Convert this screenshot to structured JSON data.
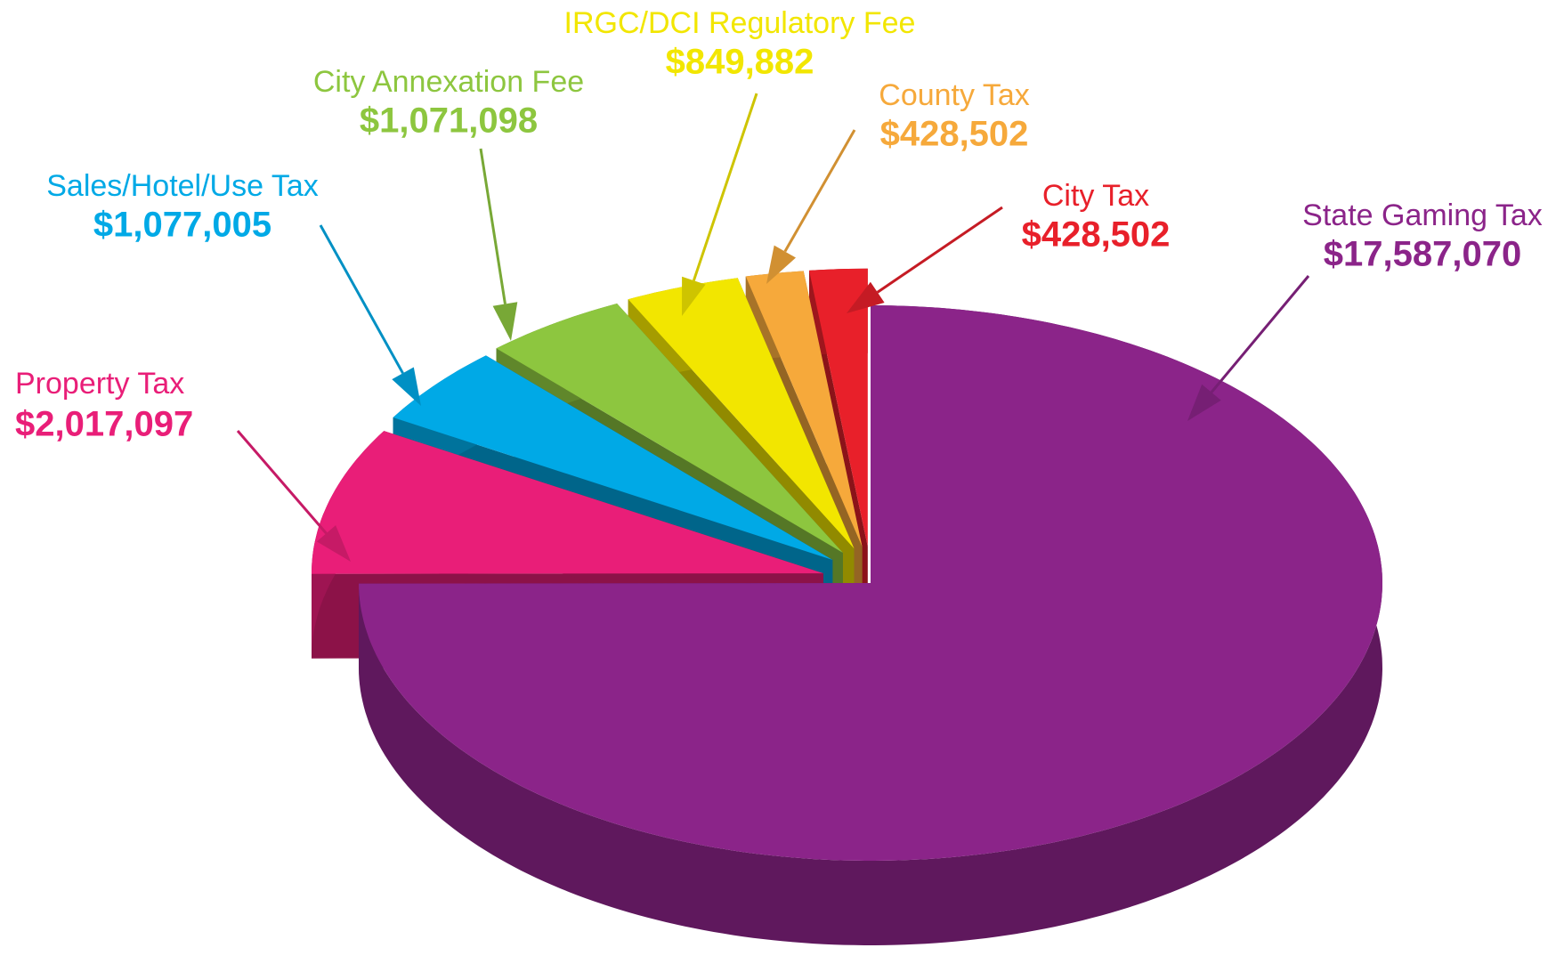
{
  "chart_data": {
    "type": "pie",
    "categories": [
      "State Gaming Tax",
      "Property Tax",
      "Sales/Hotel/Use Tax",
      "City Annexation Fee",
      "IRGC/DCI Regulatory Fee",
      "County Tax",
      "City Tax"
    ],
    "values": [
      17587070,
      2017097,
      1077005,
      1071098,
      849882,
      428502,
      428502
    ],
    "value_labels": [
      "$17,587,070",
      "$2,017,097",
      "$1,077,005",
      "$1,071,098",
      "$849,882",
      "$428,502",
      "$428,502"
    ],
    "colors": [
      "#8b2489",
      "#e91e78",
      "#00a9e6",
      "#8dc63f",
      "#f2e600",
      "#f6a93b",
      "#e8202a"
    ]
  }
}
